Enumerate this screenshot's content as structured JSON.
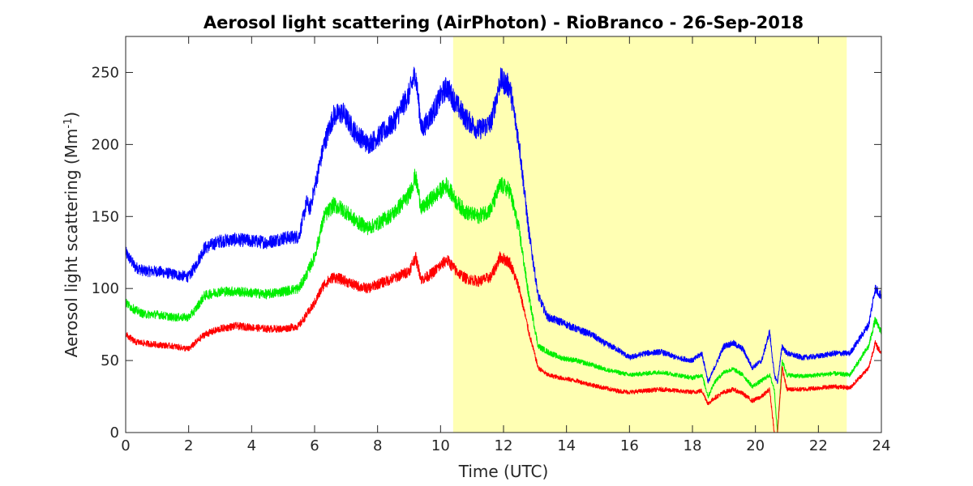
{
  "chart_data": {
    "type": "line",
    "title": "Aerosol light scattering (AirPhoton) - RioBranco - 26-Sep-2018",
    "xlabel": "Time (UTC)",
    "ylabel_main": "Aerosol light scattering (Mm",
    "ylabel_sup": "-1",
    "ylabel_close": ")",
    "xlim": [
      0,
      24
    ],
    "ylim": [
      0,
      275
    ],
    "xticks": [
      0,
      2,
      4,
      6,
      8,
      10,
      12,
      14,
      16,
      18,
      20,
      22,
      24
    ],
    "yticks": [
      0,
      50,
      100,
      150,
      200,
      250
    ],
    "grid": false,
    "daylight_shading": {
      "x_start": 10.4,
      "x_end": 22.9,
      "color": "#ffffb3"
    },
    "series": [
      {
        "color": "#0000ff",
        "x": [
          0,
          0.3,
          0.6,
          1,
          1.5,
          2,
          2.2,
          2.5,
          3,
          3.5,
          4,
          4.5,
          5,
          5.5,
          5.75,
          5.85,
          6,
          6.3,
          6.6,
          6.9,
          7.3,
          7.7,
          8,
          8.5,
          9,
          9.2,
          9.4,
          9.7,
          10,
          10.2,
          10.5,
          10.8,
          11.2,
          11.6,
          11.9,
          12.2,
          12.5,
          12.8,
          13.1,
          13.4,
          13.8,
          14.3,
          14.8,
          15.2,
          15.6,
          16,
          16.5,
          17,
          17.5,
          18,
          18.3,
          18.5,
          18.7,
          19,
          19.3,
          19.6,
          19.9,
          20.2,
          20.45,
          20.6,
          20.7,
          20.85,
          21,
          21.5,
          22,
          22.5,
          23,
          23.3,
          23.6,
          23.8,
          24
        ],
        "values": [
          125,
          115,
          112,
          112,
          110,
          108,
          115,
          128,
          133,
          134,
          133,
          132,
          135,
          136,
          160,
          155,
          170,
          200,
          220,
          222,
          208,
          200,
          205,
          215,
          235,
          250,
          210,
          220,
          233,
          240,
          228,
          218,
          210,
          215,
          245,
          240,
          200,
          140,
          95,
          80,
          77,
          72,
          68,
          62,
          58,
          52,
          55,
          56,
          52,
          50,
          55,
          35,
          45,
          60,
          62,
          58,
          45,
          50,
          70,
          40,
          35,
          60,
          55,
          52,
          53,
          55,
          55,
          65,
          75,
          100,
          95
        ]
      },
      {
        "color": "#00ee00",
        "x": [
          0,
          0.3,
          0.6,
          1,
          1.5,
          2,
          2.2,
          2.5,
          3,
          3.5,
          4,
          4.5,
          5,
          5.5,
          5.75,
          5.85,
          6,
          6.3,
          6.6,
          6.9,
          7.3,
          7.7,
          8,
          8.5,
          9,
          9.2,
          9.4,
          9.7,
          10,
          10.2,
          10.5,
          10.8,
          11.2,
          11.6,
          11.9,
          12.2,
          12.5,
          12.8,
          13.1,
          13.4,
          13.8,
          14.3,
          14.8,
          15.2,
          15.6,
          16,
          16.5,
          17,
          17.5,
          18,
          18.3,
          18.5,
          18.7,
          19,
          19.3,
          19.6,
          19.9,
          20.2,
          20.45,
          20.6,
          20.7,
          20.85,
          21,
          21.5,
          22,
          22.5,
          23,
          23.3,
          23.6,
          23.8,
          24
        ],
        "values": [
          90,
          85,
          82,
          82,
          80,
          80,
          85,
          95,
          98,
          98,
          97,
          96,
          98,
          100,
          110,
          115,
          122,
          150,
          158,
          155,
          147,
          142,
          145,
          152,
          165,
          178,
          155,
          162,
          168,
          172,
          160,
          153,
          150,
          155,
          172,
          168,
          140,
          95,
          60,
          56,
          52,
          50,
          47,
          44,
          42,
          40,
          41,
          42,
          40,
          38,
          40,
          25,
          35,
          42,
          44,
          40,
          32,
          36,
          40,
          30,
          0,
          50,
          40,
          39,
          40,
          41,
          40,
          50,
          60,
          78,
          70
        ]
      },
      {
        "color": "#ff0000",
        "x": [
          0,
          0.3,
          0.6,
          1,
          1.5,
          2,
          2.2,
          2.5,
          3,
          3.5,
          4,
          4.5,
          5,
          5.5,
          5.75,
          5.85,
          6,
          6.3,
          6.6,
          6.9,
          7.3,
          7.7,
          8,
          8.5,
          9,
          9.2,
          9.4,
          9.7,
          10,
          10.2,
          10.5,
          10.8,
          11.2,
          11.6,
          11.9,
          12.2,
          12.5,
          12.8,
          13.1,
          13.4,
          13.8,
          14.3,
          14.8,
          15.2,
          15.6,
          16,
          16.5,
          17,
          17.5,
          18,
          18.3,
          18.5,
          18.7,
          19,
          19.3,
          19.6,
          19.9,
          20.2,
          20.45,
          20.6,
          20.7,
          20.85,
          21,
          21.5,
          22,
          22.5,
          23,
          23.3,
          23.6,
          23.8,
          24
        ],
        "values": [
          68,
          63,
          62,
          61,
          60,
          58,
          62,
          68,
          72,
          74,
          73,
          72,
          72,
          74,
          82,
          85,
          90,
          103,
          108,
          106,
          102,
          100,
          103,
          107,
          112,
          122,
          106,
          110,
          116,
          120,
          112,
          107,
          105,
          108,
          122,
          118,
          100,
          70,
          45,
          40,
          38,
          36,
          33,
          31,
          29,
          28,
          29,
          30,
          29,
          28,
          29,
          20,
          24,
          28,
          30,
          27,
          22,
          25,
          30,
          0,
          0,
          45,
          30,
          30,
          31,
          32,
          31,
          38,
          45,
          62,
          55
        ]
      }
    ]
  }
}
